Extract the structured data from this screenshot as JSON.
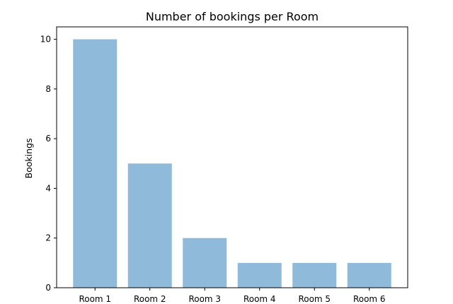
{
  "chart_data": {
    "type": "bar",
    "title": "Number of bookings per Room",
    "xlabel": "",
    "ylabel": "Bookings",
    "categories": [
      "Room 1",
      "Room 2",
      "Room 3",
      "Room 4",
      "Room 5",
      "Room 6"
    ],
    "values": [
      10,
      5,
      2,
      1,
      1,
      1
    ],
    "ylim": [
      0,
      10.5
    ],
    "yticks": [
      0,
      2,
      4,
      6,
      8,
      10
    ],
    "grid": false,
    "legend": "none",
    "bar_color": "#8fbad9"
  }
}
